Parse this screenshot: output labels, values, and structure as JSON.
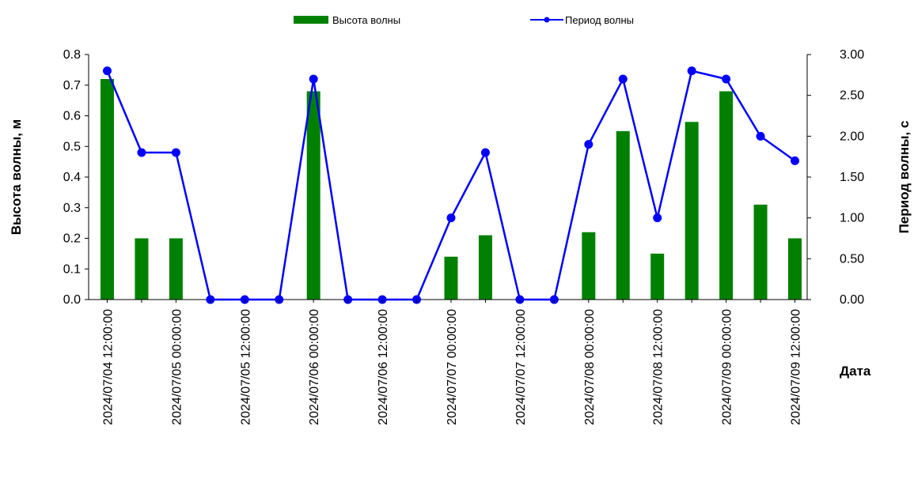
{
  "chart_data": {
    "type": "bar+line",
    "legend": {
      "placement": "top-center",
      "items": [
        {
          "key": "height",
          "label": "Высота волны",
          "type": "bar",
          "color": "#008000"
        },
        {
          "key": "period",
          "label": "Период волны",
          "type": "line",
          "color": "#0000FF"
        }
      ]
    },
    "y_left": {
      "label": "Высота волны, м",
      "ylim": [
        0,
        0.8
      ],
      "ticks": [
        "0.0",
        "0.1",
        "0.2",
        "0.3",
        "0.4",
        "0.5",
        "0.6",
        "0.7",
        "0.8"
      ]
    },
    "y_right": {
      "label": "Период волны, с",
      "ylim": [
        0,
        3.0
      ],
      "ticks": [
        "0.00",
        "0.50",
        "1.00",
        "1.50",
        "2.00",
        "2.50",
        "3.00"
      ]
    },
    "x": {
      "label": "Дата",
      "tick_labels": [
        "2024/07/04 12:00:00",
        "2024/07/05 00:00:00",
        "2024/07/05 12:00:00",
        "2024/07/06 00:00:00",
        "2024/07/06 12:00:00",
        "2024/07/07 00:00:00",
        "2024/07/07 12:00:00",
        "2024/07/08 00:00:00",
        "2024/07/08 12:00:00",
        "2024/07/09 00:00:00",
        "2024/07/09 12:00:00"
      ]
    },
    "times": [
      "2024/07/04 12:00:00",
      "2024/07/04 18:00:00",
      "2024/07/05 00:00:00",
      "2024/07/05 06:00:00",
      "2024/07/05 12:00:00",
      "2024/07/05 18:00:00",
      "2024/07/06 00:00:00",
      "2024/07/06 06:00:00",
      "2024/07/06 12:00:00",
      "2024/07/06 18:00:00",
      "2024/07/07 00:00:00",
      "2024/07/07 06:00:00",
      "2024/07/07 12:00:00",
      "2024/07/07 18:00:00",
      "2024/07/08 00:00:00",
      "2024/07/08 06:00:00",
      "2024/07/08 12:00:00",
      "2024/07/08 18:00:00",
      "2024/07/09 00:00:00",
      "2024/07/09 06:00:00",
      "2024/07/09 12:00:00"
    ],
    "series": [
      {
        "name": "Высота волны",
        "type": "bar",
        "axis": "left",
        "color": "#008000",
        "values": [
          0.72,
          0.2,
          0.2,
          0,
          0,
          0,
          0.68,
          0,
          0,
          0,
          0.14,
          0.21,
          0,
          0,
          0.22,
          0.55,
          0.15,
          0.58,
          0.68,
          0.31,
          0.2
        ]
      },
      {
        "name": "Период волны",
        "type": "line",
        "axis": "right",
        "color": "#0000FF",
        "values": [
          2.8,
          1.8,
          1.8,
          0,
          0,
          0,
          2.7,
          0,
          0,
          0,
          1.0,
          1.8,
          0,
          0,
          1.9,
          2.7,
          1.0,
          2.8,
          2.7,
          2.0,
          1.7
        ]
      }
    ]
  }
}
